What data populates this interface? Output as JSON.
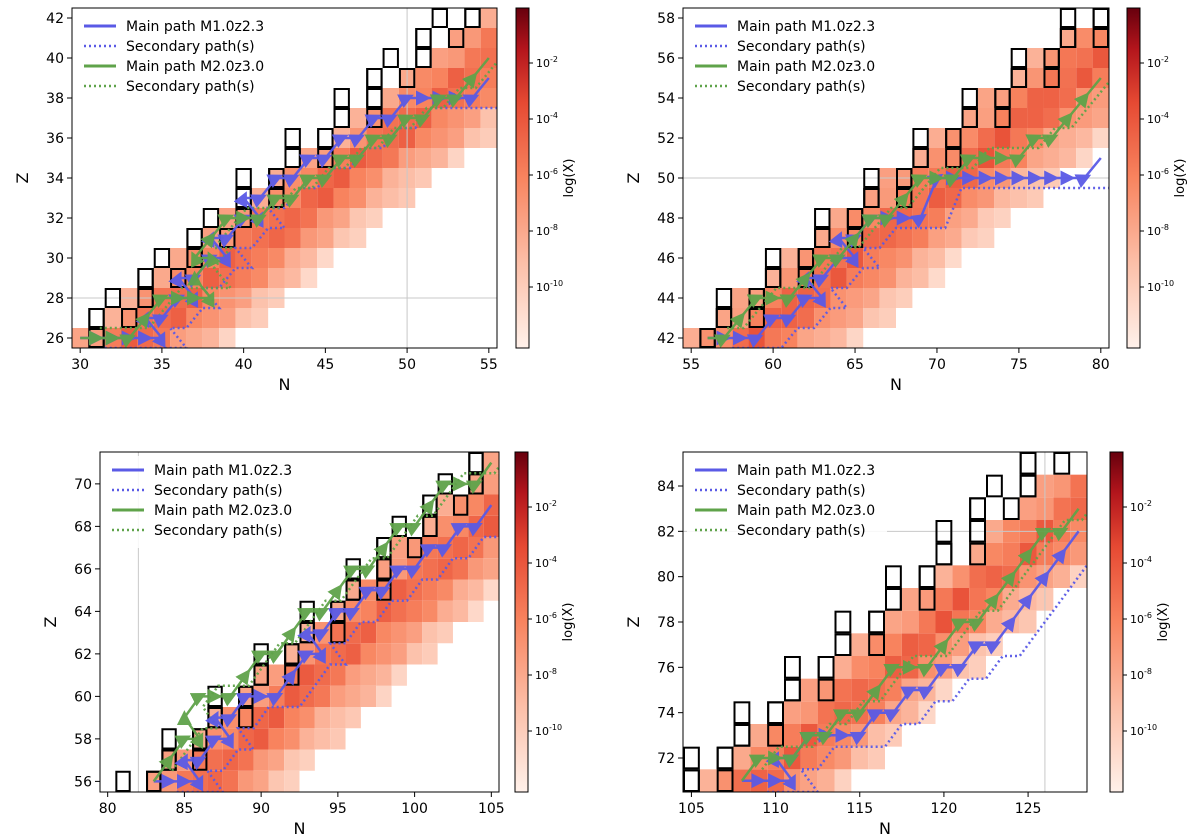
{
  "figure": {
    "colorbar": {
      "label": "log(X)",
      "ticks": [
        "10^-2",
        "10^-4",
        "10^-6",
        "10^-8",
        "10^-10"
      ],
      "colors": [
        "#fff1ea",
        "#fcbfa8",
        "#f8845f",
        "#e64a33",
        "#b3151c",
        "#67000d"
      ]
    },
    "legend": [
      {
        "label": "Main path M1.0z2.3",
        "style": "solid",
        "color": "#5a5ae6"
      },
      {
        "label": "Secondary path(s)",
        "style": "dotted",
        "color": "#5a5ae6"
      },
      {
        "label": "Main path M2.0z3.0",
        "style": "solid",
        "color": "#5fa34a"
      },
      {
        "label": "Secondary path(s)",
        "style": "dotted",
        "color": "#5fa34a"
      }
    ]
  },
  "chart_data": [
    {
      "type": "heatmap",
      "xlabel": "N",
      "ylabel": "Z",
      "colorbar_label": "log(X)",
      "xlim": [
        29.5,
        55.5
      ],
      "ylim": [
        25.5,
        42.5
      ],
      "xticks": [
        30,
        35,
        40,
        45,
        50,
        55
      ],
      "yticks": [
        26,
        28,
        30,
        32,
        34,
        36,
        38,
        40,
        42
      ],
      "magic_n": [
        50
      ],
      "magic_z": [
        28
      ],
      "band": {
        "z_from": 26,
        "z_to": 42,
        "n_start": 30,
        "slope": 1.56,
        "width": 10
      },
      "stable_band": {
        "n_start": 30,
        "slope": 1.42,
        "width": 3
      },
      "main_path_1": [
        [
          30,
          26
        ],
        [
          31,
          26
        ],
        [
          32,
          26
        ],
        [
          33,
          26
        ],
        [
          34,
          26
        ],
        [
          35,
          26
        ],
        [
          34,
          27
        ],
        [
          35,
          27
        ],
        [
          36,
          28
        ],
        [
          37,
          28
        ],
        [
          36,
          29
        ],
        [
          37,
          29
        ],
        [
          38,
          30
        ],
        [
          39,
          30
        ],
        [
          38,
          31
        ],
        [
          39,
          31
        ],
        [
          40,
          32
        ],
        [
          41,
          32
        ],
        [
          40,
          33
        ],
        [
          41,
          33
        ],
        [
          42,
          34
        ],
        [
          43,
          34
        ],
        [
          44,
          35
        ],
        [
          45,
          35
        ],
        [
          46,
          36
        ],
        [
          47,
          36
        ],
        [
          48,
          37
        ],
        [
          49,
          37
        ],
        [
          50,
          38
        ],
        [
          51,
          38
        ],
        [
          52,
          38
        ],
        [
          53,
          38
        ],
        [
          54,
          38
        ],
        [
          55,
          39
        ]
      ],
      "main_path_2": [
        [
          30,
          26
        ],
        [
          31,
          26
        ],
        [
          32,
          26
        ],
        [
          33,
          26
        ],
        [
          34,
          27
        ],
        [
          35,
          28
        ],
        [
          36,
          28
        ],
        [
          37,
          28
        ],
        [
          38,
          28
        ],
        [
          37,
          29
        ],
        [
          38,
          30
        ],
        [
          37,
          30
        ],
        [
          38,
          31
        ],
        [
          39,
          32
        ],
        [
          40,
          32
        ],
        [
          41,
          32
        ],
        [
          42,
          33
        ],
        [
          43,
          33
        ],
        [
          44,
          34
        ],
        [
          45,
          34
        ],
        [
          46,
          35
        ],
        [
          47,
          35
        ],
        [
          48,
          36
        ],
        [
          49,
          36
        ],
        [
          50,
          37
        ],
        [
          51,
          37
        ],
        [
          52,
          38
        ],
        [
          53,
          38
        ],
        [
          54,
          39
        ],
        [
          55,
          40
        ]
      ]
    },
    {
      "type": "heatmap",
      "xlabel": "N",
      "ylabel": "Z",
      "colorbar_label": "log(X)",
      "xlim": [
        54.5,
        80.5
      ],
      "ylim": [
        41.5,
        58.5
      ],
      "xticks": [
        55,
        60,
        65,
        70,
        75,
        80
      ],
      "yticks": [
        42,
        44,
        46,
        48,
        50,
        52,
        54,
        56,
        58
      ],
      "magic_n": [],
      "magic_z": [
        50
      ],
      "band": {
        "z_from": 42,
        "z_to": 57,
        "n_start": 55,
        "slope": 1.5,
        "width": 11
      },
      "stable_band": {
        "n_start": 55,
        "slope": 1.5,
        "width": 3
      },
      "main_path_1": [
        [
          56,
          42
        ],
        [
          57,
          42
        ],
        [
          58,
          42
        ],
        [
          59,
          42
        ],
        [
          60,
          43
        ],
        [
          61,
          43
        ],
        [
          62,
          44
        ],
        [
          63,
          44
        ],
        [
          62,
          45
        ],
        [
          63,
          45
        ],
        [
          64,
          46
        ],
        [
          65,
          46
        ],
        [
          64,
          47
        ],
        [
          65,
          47
        ],
        [
          66,
          48
        ],
        [
          67,
          48
        ],
        [
          68,
          48
        ],
        [
          69,
          48
        ],
        [
          70,
          50
        ],
        [
          71,
          50
        ],
        [
          72,
          50
        ],
        [
          73,
          50
        ],
        [
          74,
          50
        ],
        [
          75,
          50
        ],
        [
          76,
          50
        ],
        [
          77,
          50
        ],
        [
          78,
          50
        ],
        [
          79,
          50
        ],
        [
          80,
          51
        ]
      ],
      "main_path_2": [
        [
          56,
          42
        ],
        [
          57,
          42
        ],
        [
          58,
          43
        ],
        [
          59,
          44
        ],
        [
          60,
          44
        ],
        [
          61,
          44
        ],
        [
          62,
          45
        ],
        [
          63,
          46
        ],
        [
          64,
          46
        ],
        [
          65,
          47
        ],
        [
          66,
          48
        ],
        [
          67,
          48
        ],
        [
          68,
          49
        ],
        [
          69,
          50
        ],
        [
          70,
          50
        ],
        [
          71,
          50
        ],
        [
          72,
          51
        ],
        [
          73,
          51
        ],
        [
          74,
          51
        ],
        [
          75,
          51
        ],
        [
          76,
          52
        ],
        [
          77,
          52
        ],
        [
          78,
          53
        ],
        [
          79,
          54
        ],
        [
          80,
          55
        ]
      ]
    },
    {
      "type": "heatmap",
      "xlabel": "N",
      "ylabel": "Z",
      "colorbar_label": "log(X)",
      "xlim": [
        79.5,
        105.5
      ],
      "ylim": [
        55.5,
        71.5
      ],
      "xticks": [
        80,
        85,
        90,
        95,
        100,
        105
      ],
      "yticks": [
        56,
        58,
        60,
        62,
        64,
        66,
        68,
        70
      ],
      "magic_n": [
        82
      ],
      "magic_z": [],
      "band": {
        "z_from": 55,
        "z_to": 71,
        "n_start": 81,
        "slope": 1.5,
        "width": 10
      },
      "stable_band": {
        "n_start": 81,
        "slope": 1.45,
        "width": 3
      },
      "main_path_1": [
        [
          83,
          56
        ],
        [
          84,
          56
        ],
        [
          85,
          56
        ],
        [
          86,
          56
        ],
        [
          85,
          57
        ],
        [
          86,
          57
        ],
        [
          87,
          58
        ],
        [
          88,
          58
        ],
        [
          87,
          59
        ],
        [
          88,
          59
        ],
        [
          89,
          60
        ],
        [
          90,
          60
        ],
        [
          91,
          60
        ],
        [
          92,
          61
        ],
        [
          93,
          62
        ],
        [
          94,
          62
        ],
        [
          93,
          63
        ],
        [
          94,
          63
        ],
        [
          95,
          64
        ],
        [
          96,
          64
        ],
        [
          97,
          65
        ],
        [
          98,
          65
        ],
        [
          99,
          66
        ],
        [
          100,
          66
        ],
        [
          101,
          67
        ],
        [
          102,
          67
        ],
        [
          103,
          68
        ],
        [
          104,
          68
        ],
        [
          105,
          69
        ]
      ],
      "main_path_2": [
        [
          83,
          56
        ],
        [
          84,
          57
        ],
        [
          85,
          58
        ],
        [
          86,
          58
        ],
        [
          85,
          59
        ],
        [
          86,
          60
        ],
        [
          87,
          60
        ],
        [
          88,
          60
        ],
        [
          89,
          61
        ],
        [
          90,
          62
        ],
        [
          91,
          62
        ],
        [
          92,
          63
        ],
        [
          93,
          64
        ],
        [
          94,
          64
        ],
        [
          95,
          65
        ],
        [
          96,
          66
        ],
        [
          97,
          66
        ],
        [
          98,
          67
        ],
        [
          99,
          68
        ],
        [
          100,
          68
        ],
        [
          101,
          69
        ],
        [
          102,
          70
        ],
        [
          103,
          70
        ],
        [
          104,
          70
        ],
        [
          105,
          71
        ]
      ]
    },
    {
      "type": "heatmap",
      "xlabel": "N",
      "ylabel": "Z",
      "colorbar_label": "log(X)",
      "xlim": [
        104.5,
        128.5
      ],
      "ylim": [
        70.5,
        85.5
      ],
      "xticks": [
        105,
        110,
        115,
        120,
        125
      ],
      "yticks": [
        72,
        74,
        76,
        78,
        80,
        82,
        84
      ],
      "magic_n": [
        126
      ],
      "magic_z": [
        82
      ],
      "band": {
        "z_from": 71,
        "z_to": 84,
        "n_start": 106,
        "slope": 1.55,
        "width": 9
      },
      "stable_band": {
        "n_start": 105,
        "slope": 1.45,
        "width": 3
      },
      "main_path_1": [
        [
          108,
          71
        ],
        [
          109,
          71
        ],
        [
          110,
          71
        ],
        [
          111,
          71
        ],
        [
          110,
          72
        ],
        [
          111,
          72
        ],
        [
          112,
          73
        ],
        [
          113,
          73
        ],
        [
          114,
          73
        ],
        [
          115,
          73
        ],
        [
          116,
          74
        ],
        [
          117,
          74
        ],
        [
          118,
          75
        ],
        [
          119,
          75
        ],
        [
          120,
          76
        ],
        [
          121,
          76
        ],
        [
          122,
          77
        ],
        [
          123,
          77
        ],
        [
          124,
          78
        ],
        [
          125,
          79
        ],
        [
          126,
          80
        ],
        [
          127,
          81
        ],
        [
          128,
          82
        ]
      ],
      "main_path_2": [
        [
          108,
          71
        ],
        [
          109,
          72
        ],
        [
          110,
          72
        ],
        [
          111,
          72
        ],
        [
          112,
          73
        ],
        [
          113,
          73
        ],
        [
          114,
          74
        ],
        [
          115,
          74
        ],
        [
          116,
          75
        ],
        [
          117,
          76
        ],
        [
          118,
          76
        ],
        [
          119,
          76
        ],
        [
          120,
          77
        ],
        [
          121,
          78
        ],
        [
          122,
          78
        ],
        [
          123,
          79
        ],
        [
          124,
          80
        ],
        [
          125,
          81
        ],
        [
          126,
          82
        ],
        [
          127,
          82
        ],
        [
          128,
          83
        ]
      ]
    }
  ]
}
